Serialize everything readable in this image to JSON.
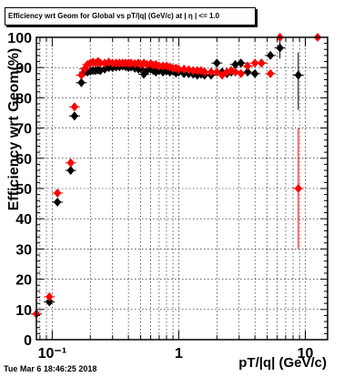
{
  "title": "Efficiency wrt Geom for Global vs pT/|q| (GeV/c) at | η | <= 1.0",
  "timestamp": "Tue Mar  6 18:46:25 2018",
  "colors": {
    "series_black": "#000000",
    "series_red": "#ff0000",
    "frame": "#000000",
    "grid": "#000000"
  },
  "chart_data": {
    "type": "scatter",
    "title": "Efficiency wrt Geom for Global vs pT/|q| (GeV/c) at | η | <= 1.0",
    "xlabel": "pT/|q| (GeV/c)",
    "ylabel": "Efficiency wrt Geom(%)",
    "xscale": "log",
    "xlim": [
      0.075,
      15
    ],
    "ylim": [
      0,
      100
    ],
    "grid": true,
    "x_tick_labels": [
      "10⁻¹",
      "1",
      "10"
    ],
    "y_tick_labels": [
      "0",
      "10",
      "20",
      "30",
      "40",
      "50",
      "60",
      "70",
      "80",
      "90",
      "100"
    ],
    "marker": "diamond",
    "series": [
      {
        "color": "#000000",
        "points": [
          [
            0.075,
            8.5
          ],
          [
            0.095,
            12.5
          ],
          [
            0.11,
            45.5
          ],
          [
            0.14,
            56
          ],
          [
            0.15,
            74
          ],
          [
            0.17,
            85
          ],
          [
            0.18,
            88.5
          ],
          [
            0.19,
            88.5
          ],
          [
            0.2,
            88.8
          ],
          [
            0.21,
            89
          ],
          [
            0.22,
            89
          ],
          [
            0.23,
            89.2
          ],
          [
            0.24,
            89
          ],
          [
            0.26,
            89.5
          ],
          [
            0.28,
            90
          ],
          [
            0.3,
            90
          ],
          [
            0.32,
            90.2
          ],
          [
            0.34,
            90.3
          ],
          [
            0.36,
            90.5
          ],
          [
            0.38,
            90.3
          ],
          [
            0.4,
            90
          ],
          [
            0.42,
            90.2
          ],
          [
            0.45,
            89.8
          ],
          [
            0.48,
            89.5
          ],
          [
            0.5,
            89.7
          ],
          [
            0.53,
            87.8
          ],
          [
            0.56,
            89
          ],
          [
            0.6,
            89.5
          ],
          [
            0.63,
            89
          ],
          [
            0.66,
            88.5
          ],
          [
            0.7,
            89
          ],
          [
            0.75,
            88.5
          ],
          [
            0.8,
            88.8
          ],
          [
            0.85,
            88.5
          ],
          [
            0.9,
            88.8
          ],
          [
            0.95,
            88.2
          ],
          [
            1.0,
            88.5
          ],
          [
            1.1,
            88
          ],
          [
            1.2,
            88
          ],
          [
            1.3,
            87.8
          ],
          [
            1.4,
            87.5
          ],
          [
            1.5,
            87.8
          ],
          [
            1.6,
            87.5
          ],
          [
            1.8,
            87.5
          ],
          [
            2.0,
            91.5
          ],
          [
            2.2,
            88.5
          ],
          [
            2.4,
            88
          ],
          [
            2.6,
            88.5
          ],
          [
            2.8,
            91
          ],
          [
            3.1,
            91.5
          ],
          [
            3.5,
            88.5
          ],
          [
            4.0,
            88
          ],
          [
            4.5,
            91.5
          ],
          [
            5.3,
            94
          ],
          [
            6.3,
            96.5
          ],
          [
            8.8,
            87.5
          ]
        ]
      },
      {
        "color": "#ff0000",
        "points": [
          [
            0.075,
            8.5
          ],
          [
            0.095,
            14.2
          ],
          [
            0.11,
            48.5
          ],
          [
            0.14,
            58.5
          ],
          [
            0.15,
            77
          ],
          [
            0.17,
            87.5
          ],
          [
            0.18,
            89.5
          ],
          [
            0.19,
            91
          ],
          [
            0.2,
            91.5
          ],
          [
            0.21,
            91.8
          ],
          [
            0.22,
            91.5
          ],
          [
            0.23,
            92
          ],
          [
            0.24,
            91.5
          ],
          [
            0.26,
            91.5
          ],
          [
            0.28,
            91.8
          ],
          [
            0.3,
            91.5
          ],
          [
            0.32,
            91.5
          ],
          [
            0.34,
            91.5
          ],
          [
            0.36,
            91.5
          ],
          [
            0.38,
            91.5
          ],
          [
            0.4,
            91.5
          ],
          [
            0.42,
            91.5
          ],
          [
            0.45,
            91.3
          ],
          [
            0.48,
            91.5
          ],
          [
            0.5,
            91
          ],
          [
            0.53,
            91.5
          ],
          [
            0.56,
            91
          ],
          [
            0.6,
            91.3
          ],
          [
            0.63,
            90.8
          ],
          [
            0.66,
            91
          ],
          [
            0.7,
            90.5
          ],
          [
            0.75,
            90.5
          ],
          [
            0.8,
            90.5
          ],
          [
            0.85,
            90.2
          ],
          [
            0.9,
            89.8
          ],
          [
            0.95,
            89.8
          ],
          [
            1.0,
            89.5
          ],
          [
            1.1,
            89.5
          ],
          [
            1.2,
            89.3
          ],
          [
            1.3,
            89
          ],
          [
            1.4,
            89
          ],
          [
            1.5,
            89
          ],
          [
            1.6,
            88.5
          ],
          [
            1.8,
            88.5
          ],
          [
            2.0,
            88.5
          ],
          [
            2.2,
            87.5
          ],
          [
            2.4,
            88.5
          ],
          [
            2.6,
            89
          ],
          [
            2.8,
            88.5
          ],
          [
            3.1,
            88
          ],
          [
            3.5,
            90.5
          ],
          [
            4.0,
            91.5
          ],
          [
            4.5,
            91.5
          ],
          [
            5.3,
            88
          ],
          [
            6.3,
            100
          ],
          [
            8.8,
            50
          ],
          [
            12.5,
            100
          ]
        ]
      }
    ]
  }
}
